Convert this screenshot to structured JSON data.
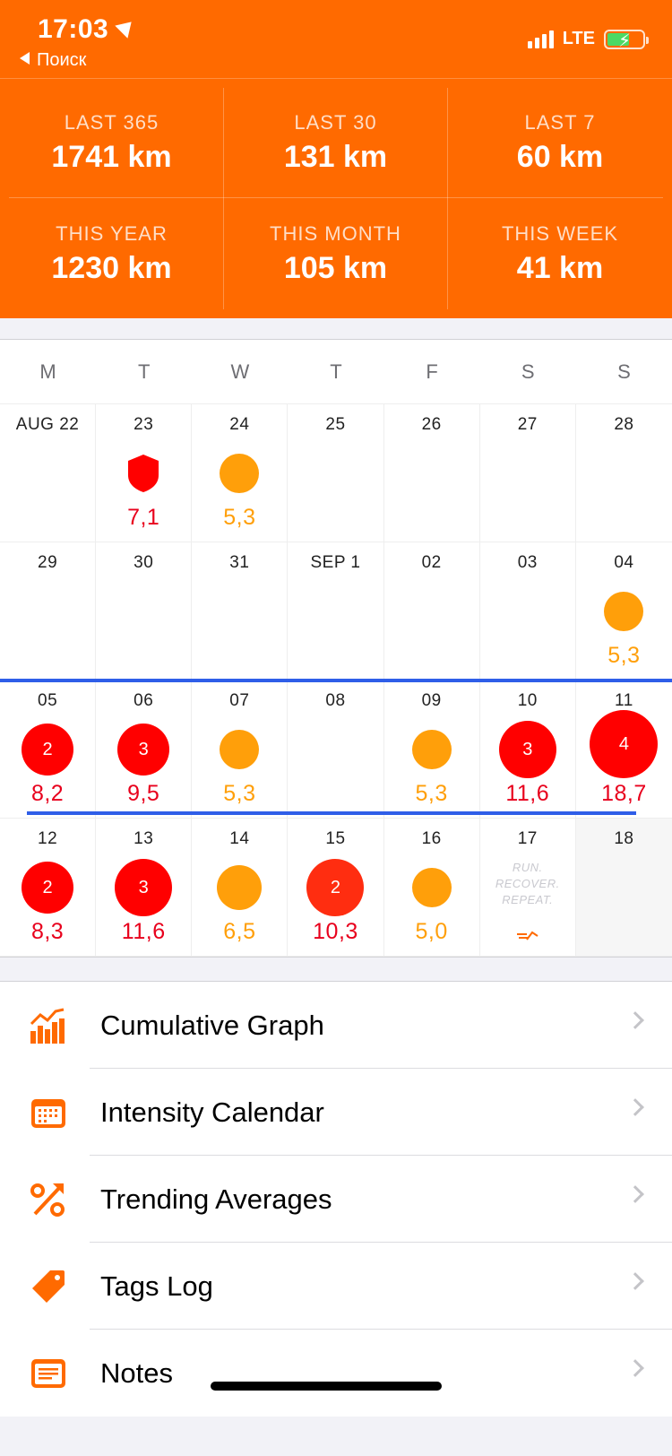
{
  "status_bar": {
    "time": "17:03",
    "back_label": "Поиск",
    "network": "LTE"
  },
  "stats": [
    {
      "label": "LAST 365",
      "value": "1741 km"
    },
    {
      "label": "LAST 30",
      "value": "131 km"
    },
    {
      "label": "LAST 7",
      "value": "60 km"
    },
    {
      "label": "THIS YEAR",
      "value": "1230 km"
    },
    {
      "label": "THIS MONTH",
      "value": "105 km"
    },
    {
      "label": "THIS WEEK",
      "value": "41 km"
    }
  ],
  "calendar": {
    "weekdays": [
      "M",
      "T",
      "W",
      "T",
      "F",
      "S",
      "S"
    ],
    "weeks": [
      [
        {
          "date": "AUG 22"
        },
        {
          "date": "23",
          "marker": "shield",
          "count": "",
          "distance": "7,1",
          "color": "red"
        },
        {
          "date": "24",
          "marker": "dot-small",
          "count": "",
          "distance": "5,3",
          "color": "orange"
        },
        {
          "date": "25"
        },
        {
          "date": "26"
        },
        {
          "date": "27"
        },
        {
          "date": "28"
        }
      ],
      [
        {
          "date": "29"
        },
        {
          "date": "30"
        },
        {
          "date": "31"
        },
        {
          "date": "SEP 1"
        },
        {
          "date": "02"
        },
        {
          "date": "03"
        },
        {
          "date": "04",
          "marker": "dot-small",
          "count": "",
          "distance": "5,3",
          "color": "orange"
        }
      ],
      [
        {
          "date": "05",
          "marker": "dot-medium",
          "count": "2",
          "distance": "8,2",
          "color": "red"
        },
        {
          "date": "06",
          "marker": "dot-medium",
          "count": "3",
          "distance": "9,5",
          "color": "red"
        },
        {
          "date": "07",
          "marker": "dot-small",
          "count": "",
          "distance": "5,3",
          "color": "orange"
        },
        {
          "date": "08"
        },
        {
          "date": "09",
          "marker": "dot-small",
          "count": "",
          "distance": "5,3",
          "color": "orange"
        },
        {
          "date": "10",
          "marker": "dot-large",
          "count": "3",
          "distance": "11,6",
          "color": "red"
        },
        {
          "date": "11",
          "marker": "dot-xlarge",
          "count": "4",
          "distance": "18,7",
          "color": "red"
        }
      ],
      [
        {
          "date": "12",
          "marker": "dot-medium",
          "count": "2",
          "distance": "8,3",
          "color": "red"
        },
        {
          "date": "13",
          "marker": "dot-large",
          "count": "3",
          "distance": "11,6",
          "color": "red"
        },
        {
          "date": "14",
          "marker": "dot-small-lg",
          "count": "",
          "distance": "6,5",
          "color": "orange"
        },
        {
          "date": "15",
          "marker": "dot-large",
          "count": "2",
          "distance": "10,3",
          "color": "red"
        },
        {
          "date": "16",
          "marker": "dot-small",
          "count": "",
          "distance": "5,0",
          "color": "orange"
        },
        {
          "date": "17",
          "motto": "RUN. RECOVER. REPEAT."
        },
        {
          "date": "18",
          "today": true
        }
      ]
    ]
  },
  "menu": [
    {
      "label": "Cumulative Graph",
      "icon": "bar-chart-icon"
    },
    {
      "label": "Intensity Calendar",
      "icon": "calendar-icon"
    },
    {
      "label": "Trending Averages",
      "icon": "percent-trend-icon"
    },
    {
      "label": "Tags Log",
      "icon": "tag-icon"
    },
    {
      "label": "Notes",
      "icon": "notes-icon"
    }
  ],
  "colors": {
    "brand": "#ff6a00",
    "run_orange": "#ff9f0a",
    "run_red": "#ff0000",
    "week_highlight": "#2f5ee8"
  }
}
